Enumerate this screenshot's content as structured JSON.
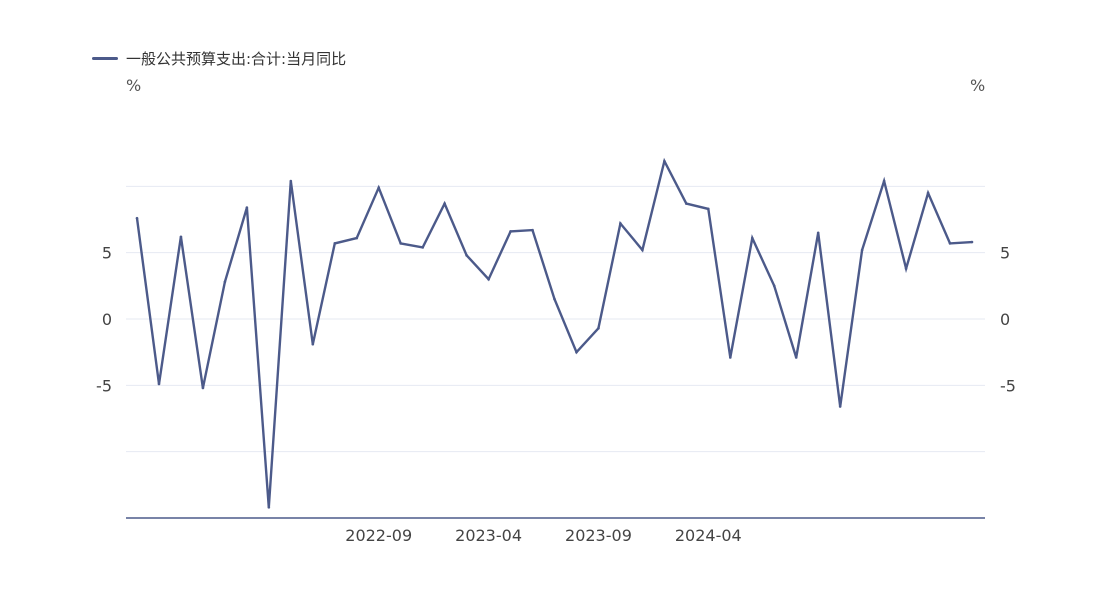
{
  "chart_data": {
    "type": "line",
    "series": [
      {
        "name": "一般公共预算支出:合计:当月同比",
        "color": "#4c5a8a",
        "values": [
          7.6,
          -4.9,
          6.2,
          -5.2,
          2.8,
          8.4,
          -14.2,
          10.4,
          -1.9,
          5.7,
          6.1,
          9.9,
          5.7,
          5.4,
          8.7,
          4.8,
          3.0,
          6.6,
          6.7,
          1.5,
          -2.5,
          -0.7,
          7.2,
          5.2,
          11.9,
          8.7,
          8.3,
          -2.9,
          6.1,
          2.5,
          -2.9,
          6.5,
          -6.6,
          5.2,
          10.4,
          3.8,
          9.5,
          5.7,
          5.8
        ]
      }
    ],
    "x_tick_labels": [
      {
        "index": 11,
        "label": "2022-09"
      },
      {
        "index": 16,
        "label": "2023-04"
      },
      {
        "index": 21,
        "label": "2023-09"
      },
      {
        "index": 26,
        "label": "2024-04"
      }
    ],
    "y_ticks_left": [
      5,
      0,
      -5
    ],
    "y_ticks_right": [
      5,
      0,
      -5
    ],
    "y_unit_left": "%",
    "y_unit_right": "%",
    "ylim": [
      -15,
      15
    ],
    "gridlines": [
      10,
      5,
      0,
      -5,
      -10
    ],
    "grid": true,
    "legend_position": "top-left"
  }
}
